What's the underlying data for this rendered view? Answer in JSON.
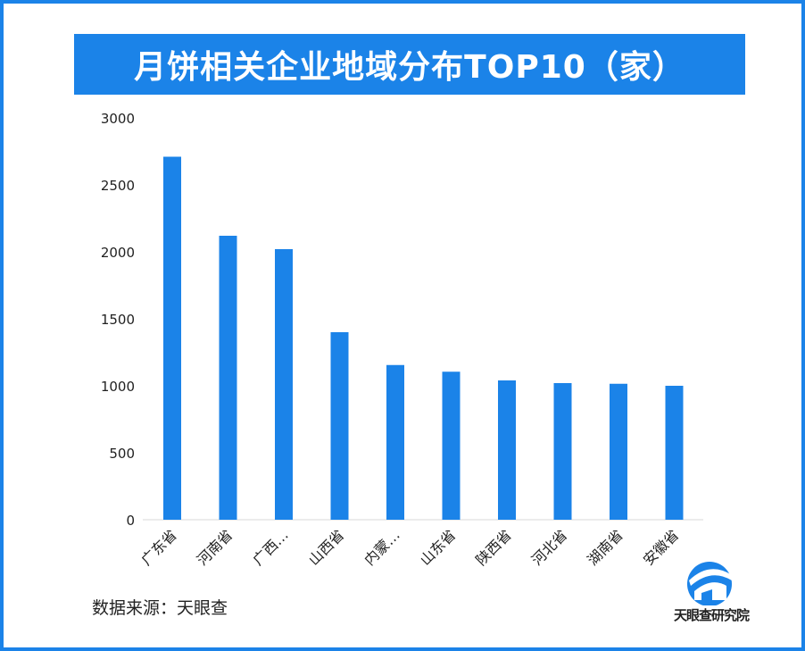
{
  "title": "月饼相关企业地域分布TOP10（家）",
  "source": "数据来源：天眼查",
  "logo_text": "天眼查研究院",
  "colors": {
    "accent": "#1b83e8",
    "bar": "#1b83e8",
    "axis": "#d9d9d9",
    "text": "#222222"
  },
  "chart_data": {
    "type": "bar",
    "title": "月饼相关企业地域分布TOP10（家）",
    "categories": [
      "广东省",
      "河南省",
      "广西…",
      "山西省",
      "内蒙…",
      "山东省",
      "陕西省",
      "河北省",
      "湖南省",
      "安徽省"
    ],
    "values": [
      2710,
      2120,
      2020,
      1400,
      1155,
      1105,
      1040,
      1020,
      1015,
      1000
    ],
    "yticks": [
      0,
      500,
      1000,
      1500,
      2000,
      2500,
      3000
    ],
    "ylim": [
      0,
      3000
    ],
    "xlabel": "",
    "ylabel": "",
    "grid": false,
    "legend": "none"
  }
}
